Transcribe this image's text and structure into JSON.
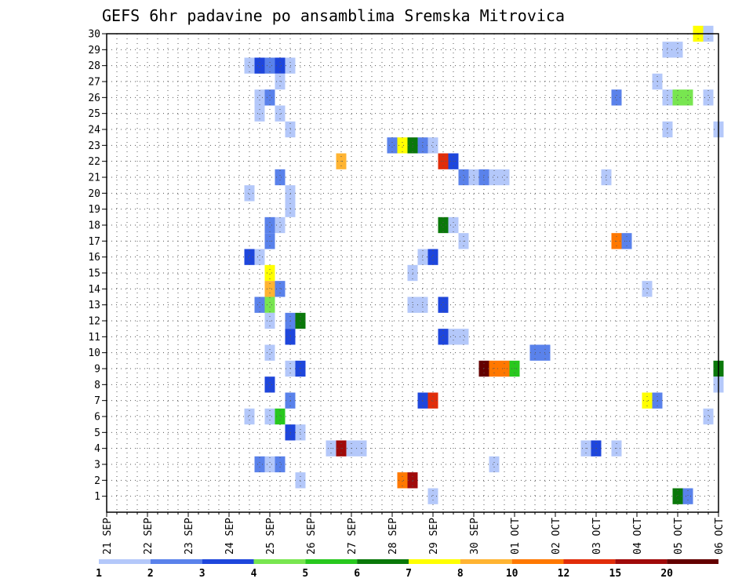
{
  "chart_data": {
    "type": "heatmap",
    "title": "GEFS 6hr padavine po ansamblima Sremska Mitrovica",
    "xlabel": "",
    "ylabel": "",
    "x_tick_labels": [
      "21 SEP",
      "22 SEP",
      "23 SEP",
      "24 SEP",
      "25 SEP",
      "26 SEP",
      "27 SEP",
      "28 SEP",
      "29 SEP",
      "30 SEP",
      "01 OCT",
      "02 OCT",
      "03 OCT",
      "04 OCT",
      "05 OCT",
      "06 OCT"
    ],
    "y_tick_labels": [
      "1",
      "2",
      "3",
      "4",
      "5",
      "6",
      "7",
      "8",
      "9",
      "10",
      "11",
      "12",
      "13",
      "14",
      "15",
      "16",
      "17",
      "18",
      "19",
      "20",
      "21",
      "22",
      "23",
      "24",
      "25",
      "26",
      "27",
      "28",
      "29",
      "30"
    ],
    "grid": true,
    "x_unit": "6-hour steps from 21 SEP 00 UTC",
    "xlim": [
      0,
      60
    ],
    "ylim": [
      0,
      30
    ],
    "colorbar": {
      "labels": [
        "1",
        "2",
        "3",
        "4",
        "5",
        "6",
        "7",
        "8",
        "10",
        "12",
        "15",
        "20"
      ],
      "colors": [
        "#b4c8fa",
        "#5a82eb",
        "#1e46dc",
        "#78e650",
        "#28c81e",
        "#0a780a",
        "#ffff00",
        "#ffb432",
        "#ff7800",
        "#e12d0a",
        "#a00a0a",
        "#640000"
      ]
    },
    "cells": [
      {
        "x": 58,
        "y": 30,
        "c": 7
      },
      {
        "x": 59,
        "y": 30,
        "c": 1
      },
      {
        "x": 55,
        "y": 29,
        "c": 1
      },
      {
        "x": 56,
        "y": 29,
        "c": 1
      },
      {
        "x": 14,
        "y": 28,
        "c": 1
      },
      {
        "x": 15,
        "y": 28,
        "c": 3
      },
      {
        "x": 16,
        "y": 28,
        "c": 2
      },
      {
        "x": 17,
        "y": 28,
        "c": 3
      },
      {
        "x": 18,
        "y": 28,
        "c": 1
      },
      {
        "x": 17,
        "y": 27,
        "c": 1
      },
      {
        "x": 54,
        "y": 27,
        "c": 1
      },
      {
        "x": 15,
        "y": 26,
        "c": 1
      },
      {
        "x": 16,
        "y": 26,
        "c": 2
      },
      {
        "x": 50,
        "y": 26,
        "c": 2
      },
      {
        "x": 55,
        "y": 26,
        "c": 1
      },
      {
        "x": 56,
        "y": 26,
        "c": 4
      },
      {
        "x": 57,
        "y": 26,
        "c": 4
      },
      {
        "x": 59,
        "y": 26,
        "c": 1
      },
      {
        "x": 15,
        "y": 25,
        "c": 1
      },
      {
        "x": 17,
        "y": 25,
        "c": 1
      },
      {
        "x": 18,
        "y": 24,
        "c": 1
      },
      {
        "x": 55,
        "y": 24,
        "c": 1
      },
      {
        "x": 60,
        "y": 24,
        "c": 1
      },
      {
        "x": 28,
        "y": 23,
        "c": 2
      },
      {
        "x": 29,
        "y": 23,
        "c": 7
      },
      {
        "x": 30,
        "y": 23,
        "c": 6
      },
      {
        "x": 31,
        "y": 23,
        "c": 2
      },
      {
        "x": 32,
        "y": 23,
        "c": 1
      },
      {
        "x": 23,
        "y": 22,
        "c": 8
      },
      {
        "x": 33,
        "y": 22,
        "c": 10
      },
      {
        "x": 34,
        "y": 22,
        "c": 3
      },
      {
        "x": 17,
        "y": 21,
        "c": 2
      },
      {
        "x": 35,
        "y": 21,
        "c": 2
      },
      {
        "x": 36,
        "y": 21,
        "c": 1
      },
      {
        "x": 37,
        "y": 21,
        "c": 2
      },
      {
        "x": 38,
        "y": 21,
        "c": 1
      },
      {
        "x": 39,
        "y": 21,
        "c": 1
      },
      {
        "x": 49,
        "y": 21,
        "c": 1
      },
      {
        "x": 14,
        "y": 20,
        "c": 1
      },
      {
        "x": 18,
        "y": 20,
        "c": 1
      },
      {
        "x": 18,
        "y": 19,
        "c": 1
      },
      {
        "x": 16,
        "y": 18,
        "c": 2
      },
      {
        "x": 17,
        "y": 18,
        "c": 1
      },
      {
        "x": 33,
        "y": 18,
        "c": 6
      },
      {
        "x": 34,
        "y": 18,
        "c": 1
      },
      {
        "x": 16,
        "y": 17,
        "c": 2
      },
      {
        "x": 35,
        "y": 17,
        "c": 1
      },
      {
        "x": 50,
        "y": 17,
        "c": 9
      },
      {
        "x": 51,
        "y": 17,
        "c": 2
      },
      {
        "x": 14,
        "y": 16,
        "c": 3
      },
      {
        "x": 15,
        "y": 16,
        "c": 1
      },
      {
        "x": 31,
        "y": 16,
        "c": 1
      },
      {
        "x": 32,
        "y": 16,
        "c": 3
      },
      {
        "x": 16,
        "y": 15,
        "c": 7
      },
      {
        "x": 30,
        "y": 15,
        "c": 1
      },
      {
        "x": 16,
        "y": 14,
        "c": 8
      },
      {
        "x": 17,
        "y": 14,
        "c": 2
      },
      {
        "x": 53,
        "y": 14,
        "c": 1
      },
      {
        "x": 15,
        "y": 13,
        "c": 2
      },
      {
        "x": 16,
        "y": 13,
        "c": 4
      },
      {
        "x": 30,
        "y": 13,
        "c": 1
      },
      {
        "x": 31,
        "y": 13,
        "c": 1
      },
      {
        "x": 33,
        "y": 13,
        "c": 3
      },
      {
        "x": 16,
        "y": 12,
        "c": 1
      },
      {
        "x": 18,
        "y": 12,
        "c": 2
      },
      {
        "x": 19,
        "y": 12,
        "c": 6
      },
      {
        "x": 18,
        "y": 11,
        "c": 3
      },
      {
        "x": 33,
        "y": 11,
        "c": 3
      },
      {
        "x": 34,
        "y": 11,
        "c": 1
      },
      {
        "x": 35,
        "y": 11,
        "c": 1
      },
      {
        "x": 16,
        "y": 10,
        "c": 1
      },
      {
        "x": 42,
        "y": 10,
        "c": 2
      },
      {
        "x": 43,
        "y": 10,
        "c": 2
      },
      {
        "x": 18,
        "y": 9,
        "c": 1
      },
      {
        "x": 19,
        "y": 9,
        "c": 3
      },
      {
        "x": 37,
        "y": 9,
        "c": 12
      },
      {
        "x": 38,
        "y": 9,
        "c": 9
      },
      {
        "x": 39,
        "y": 9,
        "c": 9
      },
      {
        "x": 40,
        "y": 9,
        "c": 5
      },
      {
        "x": 60,
        "y": 9,
        "c": 6
      },
      {
        "x": 16,
        "y": 8,
        "c": 3
      },
      {
        "x": 60,
        "y": 8,
        "c": 1
      },
      {
        "x": 18,
        "y": 7,
        "c": 2
      },
      {
        "x": 31,
        "y": 7,
        "c": 3
      },
      {
        "x": 32,
        "y": 7,
        "c": 10
      },
      {
        "x": 53,
        "y": 7,
        "c": 7
      },
      {
        "x": 54,
        "y": 7,
        "c": 2
      },
      {
        "x": 14,
        "y": 6,
        "c": 1
      },
      {
        "x": 16,
        "y": 6,
        "c": 1
      },
      {
        "x": 17,
        "y": 6,
        "c": 5
      },
      {
        "x": 59,
        "y": 6,
        "c": 1
      },
      {
        "x": 18,
        "y": 5,
        "c": 3
      },
      {
        "x": 19,
        "y": 5,
        "c": 1
      },
      {
        "x": 22,
        "y": 4,
        "c": 1
      },
      {
        "x": 23,
        "y": 4,
        "c": 11
      },
      {
        "x": 24,
        "y": 4,
        "c": 1
      },
      {
        "x": 25,
        "y": 4,
        "c": 1
      },
      {
        "x": 47,
        "y": 4,
        "c": 1
      },
      {
        "x": 48,
        "y": 4,
        "c": 3
      },
      {
        "x": 50,
        "y": 4,
        "c": 1
      },
      {
        "x": 15,
        "y": 3,
        "c": 2
      },
      {
        "x": 16,
        "y": 3,
        "c": 1
      },
      {
        "x": 17,
        "y": 3,
        "c": 2
      },
      {
        "x": 38,
        "y": 3,
        "c": 1
      },
      {
        "x": 19,
        "y": 2,
        "c": 1
      },
      {
        "x": 29,
        "y": 2,
        "c": 9
      },
      {
        "x": 30,
        "y": 2,
        "c": 11
      },
      {
        "x": 32,
        "y": 1,
        "c": 1
      },
      {
        "x": 56,
        "y": 1,
        "c": 6
      },
      {
        "x": 57,
        "y": 1,
        "c": 2
      }
    ]
  }
}
